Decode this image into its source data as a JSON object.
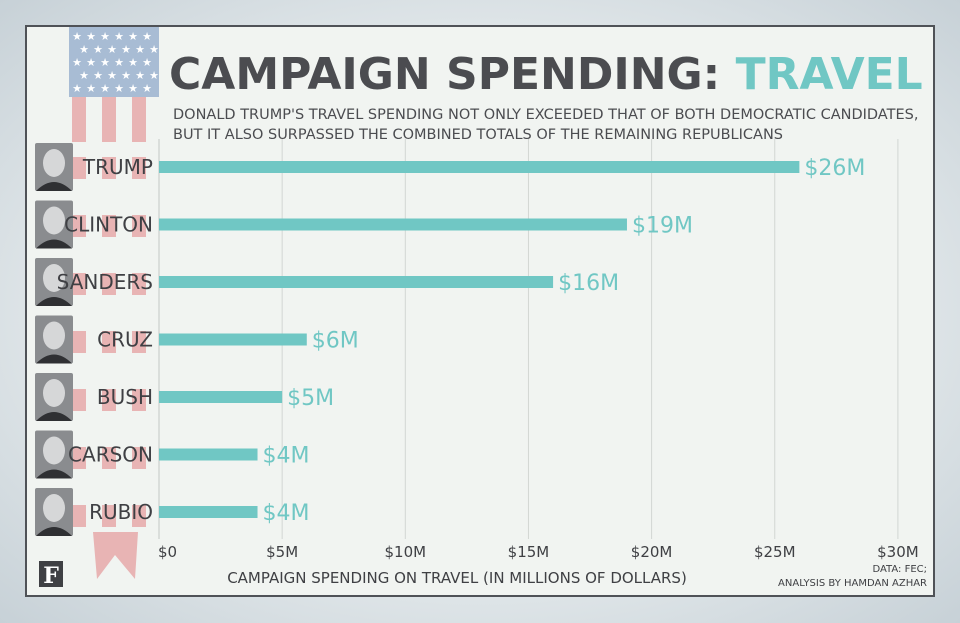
{
  "title": {
    "main": "CAMPAIGN SPENDING:",
    "accent": "TRAVEL"
  },
  "subtitle": [
    "DONALD TRUMP'S TRAVEL SPENDING NOT ONLY EXCEEDED THAT OF BOTH DEMOCRATIC CANDIDATES,",
    "BUT IT ALSO SURPASSED THE COMBINED TOTALS OF THE REMAINING REPUBLICANS"
  ],
  "logo_letter": "F",
  "source": {
    "line1": "DATA: FEC;",
    "line2": "ANALYSIS BY HAMDAN AZHAR"
  },
  "colors": {
    "bar": "#70c7c4",
    "text": "#4b4c50",
    "flag_red": "#e8b4b4",
    "flag_blue": "#a8bcd4"
  },
  "chart_data": {
    "type": "bar",
    "orientation": "horizontal",
    "title": "CAMPAIGN SPENDING: TRAVEL",
    "xlabel": "CAMPAIGN SPENDING ON TRAVEL (IN MILLIONS OF DOLLARS)",
    "xlim": [
      0,
      30
    ],
    "xticks": [
      0,
      5,
      10,
      15,
      20,
      25,
      30
    ],
    "xtick_labels": [
      "$0",
      "$5M",
      "$10M",
      "$15M",
      "$20M",
      "$25M",
      "$30M"
    ],
    "grid": "vertical",
    "categories": [
      "TRUMP",
      "CLINTON",
      "SANDERS",
      "CRUZ",
      "BUSH",
      "CARSON",
      "RUBIO"
    ],
    "values": [
      26,
      19,
      16,
      6,
      5,
      4,
      4
    ],
    "data_labels": [
      "$26M",
      "$19M",
      "$16M",
      "$6M",
      "$5M",
      "$4M",
      "$4M"
    ]
  }
}
